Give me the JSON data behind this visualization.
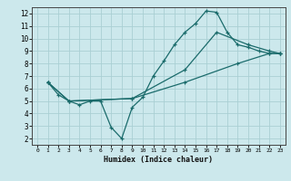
{
  "xlabel": "Humidex (Indice chaleur)",
  "bg_color": "#cce8ec",
  "grid_color": "#aacfd4",
  "line_color": "#1a6b6b",
  "xlim": [
    -0.5,
    23.5
  ],
  "ylim": [
    1.5,
    12.5
  ],
  "xticks": [
    0,
    1,
    2,
    3,
    4,
    5,
    6,
    7,
    8,
    9,
    10,
    11,
    12,
    13,
    14,
    15,
    16,
    17,
    18,
    19,
    20,
    21,
    22,
    23
  ],
  "yticks": [
    2,
    3,
    4,
    5,
    6,
    7,
    8,
    9,
    10,
    11,
    12
  ],
  "line1_x": [
    1,
    2,
    3,
    4,
    5,
    6,
    7,
    8,
    9,
    10,
    11,
    12,
    13,
    14,
    15,
    16,
    17,
    18,
    19,
    20,
    21,
    22,
    23
  ],
  "line1_y": [
    6.5,
    5.5,
    5.0,
    4.7,
    5.0,
    5.0,
    2.9,
    2.0,
    4.5,
    5.3,
    7.0,
    8.2,
    9.5,
    10.5,
    11.2,
    12.2,
    12.1,
    10.5,
    9.5,
    9.3,
    9.0,
    8.8,
    8.8
  ],
  "line2_x": [
    1,
    3,
    9,
    14,
    17,
    20,
    22,
    23
  ],
  "line2_y": [
    6.5,
    5.0,
    5.2,
    7.5,
    10.5,
    9.5,
    9.0,
    8.8
  ],
  "line3_x": [
    1,
    3,
    9,
    14,
    19,
    22,
    23
  ],
  "line3_y": [
    6.5,
    5.0,
    5.2,
    6.5,
    8.0,
    8.8,
    8.8
  ]
}
